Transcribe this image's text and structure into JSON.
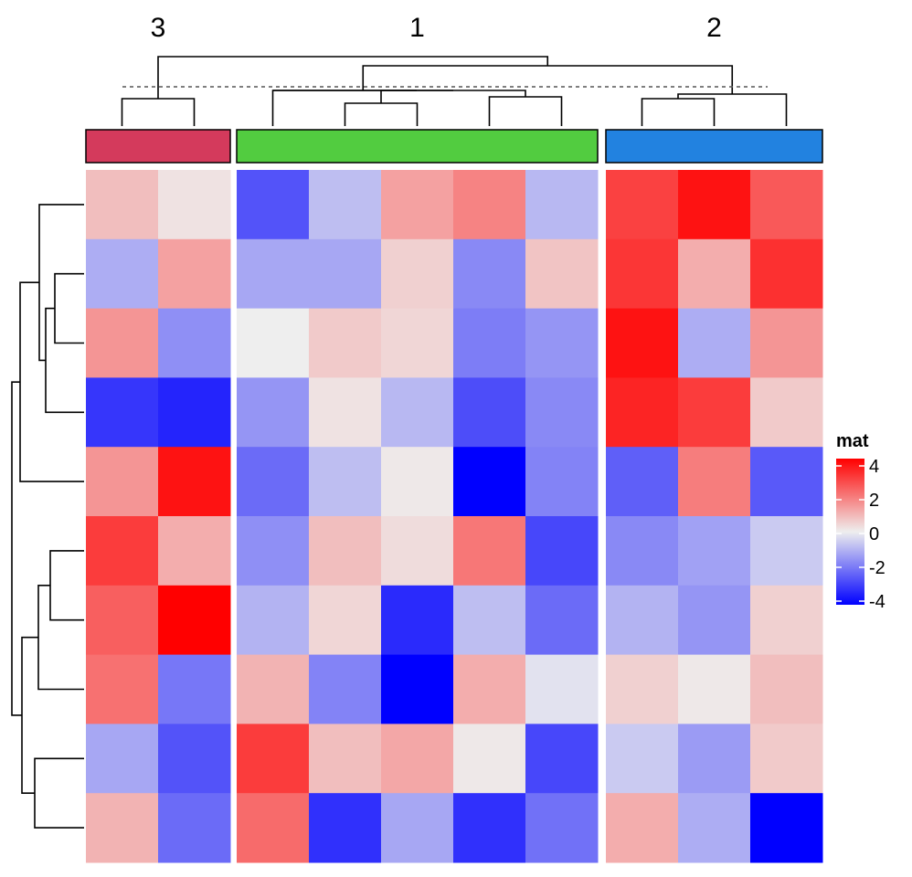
{
  "chart_data": {
    "type": "heatmap",
    "title": "",
    "column_groups": [
      {
        "label": "3",
        "color": "#D43A5C",
        "columns": 2
      },
      {
        "label": "1",
        "color": "#52CC40",
        "columns": 5
      },
      {
        "label": "2",
        "color": "#2282E0",
        "columns": 3
      }
    ],
    "values": [
      [
        0.8,
        0.2,
        -2.6,
        -0.8,
        1.3,
        1.8,
        -0.9,
        2.9,
        3.7,
        2.5
      ],
      [
        -1.1,
        1.3,
        -1.2,
        -1.2,
        0.5,
        -1.7,
        0.7,
        3.1,
        1.1,
        3.2
      ],
      [
        1.5,
        -1.6,
        0.0,
        0.6,
        0.4,
        -1.9,
        -1.5,
        3.7,
        -1.1,
        1.5
      ],
      [
        -3.1,
        -3.4,
        -1.5,
        0.2,
        -0.9,
        -2.7,
        -1.7,
        3.4,
        3.0,
        0.6
      ],
      [
        1.5,
        3.7,
        -2.2,
        -0.8,
        0.1,
        -4.3,
        -1.8,
        -2.4,
        1.9,
        -2.5
      ],
      [
        3.0,
        1.1,
        -1.6,
        0.8,
        0.3,
        2.0,
        -2.8,
        -1.7,
        -1.3,
        -0.6
      ],
      [
        2.4,
        4.0,
        -1.0,
        0.4,
        -3.3,
        -0.8,
        -2.2,
        -1.0,
        -1.5,
        0.5
      ],
      [
        2.1,
        -2.0,
        1.0,
        -1.8,
        -4.0,
        1.1,
        -0.2,
        0.5,
        0.1,
        0.8
      ],
      [
        -1.2,
        -2.6,
        3.0,
        0.8,
        1.2,
        0.1,
        -2.8,
        -0.6,
        -1.4,
        0.6
      ],
      [
        1.0,
        -2.2,
        2.2,
        -3.2,
        -1.2,
        -3.2,
        -2.1,
        1.1,
        -1.1,
        -4.1
      ]
    ],
    "row_order": [
      1,
      2,
      3,
      4,
      5,
      6,
      7,
      8,
      9,
      10
    ],
    "color_scale": {
      "domain": [
        -4,
        0,
        4
      ],
      "colors": [
        "#0000FF",
        "#EEEEEE",
        "#FF0000"
      ]
    },
    "legend": {
      "title": "mat",
      "placement": "right",
      "ticks": [
        "4",
        "2",
        "0",
        "-2",
        "-4"
      ]
    },
    "column_dendrogram": true,
    "row_dendrogram": true,
    "dendrogram_cut_line": "dashed",
    "grid": false
  }
}
